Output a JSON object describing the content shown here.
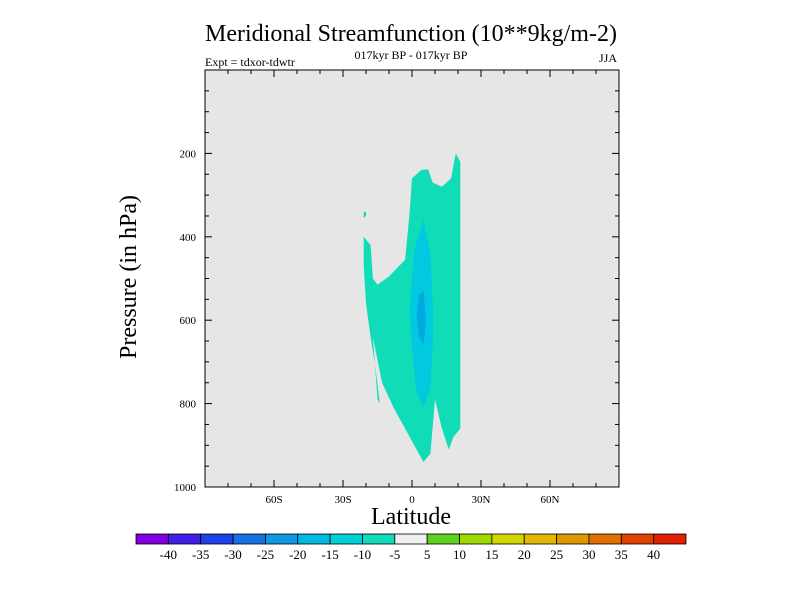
{
  "chart_data": {
    "type": "contour",
    "title": "Meridional Streamfunction (10**9kg/m-2)",
    "subtitle_center": "017kyr BP - 017kyr BP",
    "subtitle_left": "Expt = tdxor-tdwtr",
    "subtitle_right": "JJA",
    "xlabel": "Latitude",
    "ylabel": "Pressure (in hPa)",
    "xlim": [
      -90,
      90
    ],
    "ylim": [
      1000,
      0
    ],
    "x_ticks": [
      {
        "value": -60,
        "label": "60S"
      },
      {
        "value": -30,
        "label": "30S"
      },
      {
        "value": 0,
        "label": "0"
      },
      {
        "value": 30,
        "label": "30N"
      },
      {
        "value": 60,
        "label": "60N"
      }
    ],
    "y_ticks": [
      {
        "value": 200,
        "label": "200"
      },
      {
        "value": 400,
        "label": "400"
      },
      {
        "value": 600,
        "label": "600"
      },
      {
        "value": 800,
        "label": "800"
      },
      {
        "value": 1000,
        "label": "1000"
      }
    ],
    "background_color": "#e6e6e6",
    "contour_levels": [
      {
        "name": "level-minus5-to-minus10",
        "color": "#10dcb8",
        "points": [
          [
            -21,
            400
          ],
          [
            -18,
            420
          ],
          [
            -17,
            500
          ],
          [
            -15,
            515
          ],
          [
            -10,
            495
          ],
          [
            -3,
            455
          ],
          [
            -1,
            340
          ],
          [
            0,
            260
          ],
          [
            4,
            240
          ],
          [
            7,
            238
          ],
          [
            9,
            270
          ],
          [
            13,
            280
          ],
          [
            17,
            260
          ],
          [
            19,
            200
          ],
          [
            21,
            220
          ],
          [
            21,
            860
          ],
          [
            18,
            880
          ],
          [
            16,
            910
          ],
          [
            13,
            860
          ],
          [
            10,
            790
          ],
          [
            8,
            920
          ],
          [
            5,
            940
          ],
          [
            2,
            910
          ],
          [
            -3,
            860
          ],
          [
            -8,
            810
          ],
          [
            -13,
            750
          ],
          [
            -17,
            640
          ],
          [
            -15,
            790
          ],
          [
            -14,
            800
          ],
          [
            -16,
            710
          ],
          [
            -18,
            640
          ],
          [
            -20,
            560
          ],
          [
            -21,
            470
          ]
        ]
      },
      {
        "name": "level-minus5-to-minus10-small",
        "color": "#10dcb8",
        "points": [
          [
            -21,
            340
          ],
          [
            -20,
            340
          ],
          [
            -20,
            350
          ],
          [
            -21,
            355
          ]
        ]
      },
      {
        "name": "level-minus10-to-minus15",
        "color": "#00c9e0",
        "points": [
          [
            1,
            430
          ],
          [
            5,
            360
          ],
          [
            8,
            440
          ],
          [
            9,
            560
          ],
          [
            9,
            660
          ],
          [
            8,
            760
          ],
          [
            5,
            810
          ],
          [
            2,
            770
          ],
          [
            0,
            670
          ],
          [
            -1,
            570
          ],
          [
            0,
            500
          ]
        ]
      },
      {
        "name": "level-minus15-to-minus20",
        "color": "#00a8e0",
        "points": [
          [
            3,
            540
          ],
          [
            5,
            530
          ],
          [
            6,
            600
          ],
          [
            5,
            660
          ],
          [
            3,
            640
          ],
          [
            2,
            590
          ]
        ]
      }
    ],
    "colorbar": {
      "labels": [
        "-40",
        "-35",
        "-30",
        "-25",
        "-20",
        "-15",
        "-10",
        "-5",
        "5",
        "10",
        "15",
        "20",
        "25",
        "30",
        "35",
        "40"
      ],
      "colors": [
        "#8000e0",
        "#4020e8",
        "#2040e8",
        "#1870e0",
        "#1098e0",
        "#00b8e0",
        "#00d0d8",
        "#10dcb8",
        "#f0f0f0",
        "#60d020",
        "#a0d800",
        "#d0d800",
        "#e0b800",
        "#e09800",
        "#e07000",
        "#e04000",
        "#e02000"
      ]
    }
  }
}
